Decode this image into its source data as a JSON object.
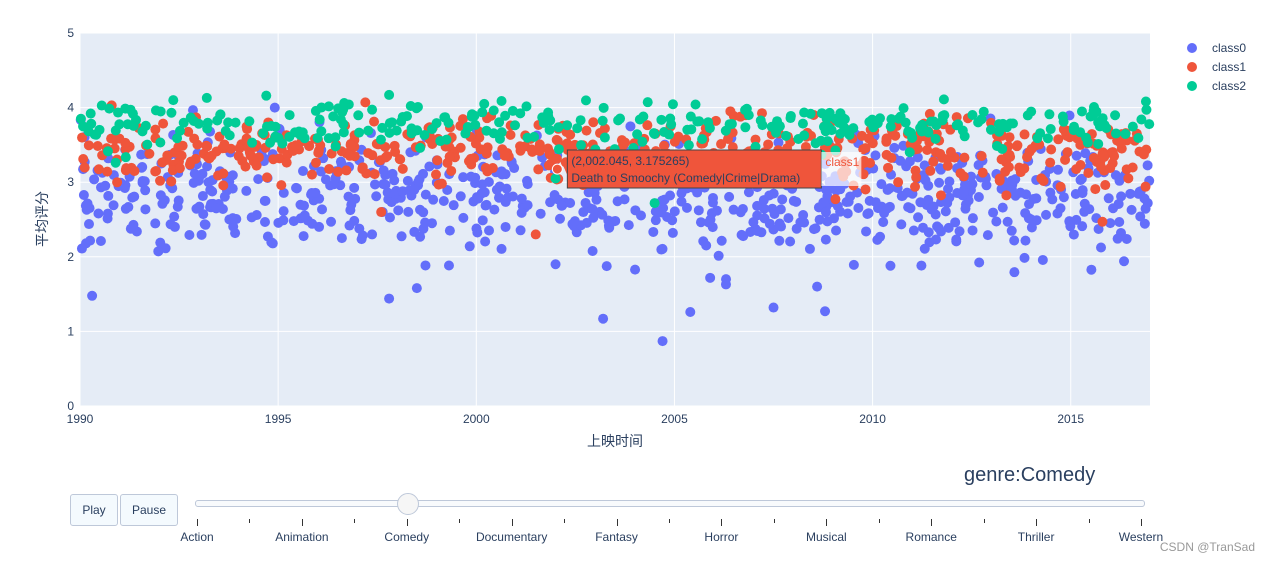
{
  "chart_data": {
    "type": "scatter",
    "xlabel": "上映时间",
    "ylabel": "平均评分",
    "xlim": [
      1990,
      2017
    ],
    "ylim": [
      0,
      5
    ],
    "xticks": [
      1990,
      1995,
      2000,
      2005,
      2010,
      2015
    ],
    "yticks": [
      0,
      1,
      2,
      3,
      4,
      5
    ],
    "grid": true,
    "legend_position": "top-right",
    "series": [
      {
        "name": "class0",
        "color": "#636efa",
        "y_center": 2.8,
        "y_spread": 0.38,
        "count": 720,
        "outliers": [
          [
            2003.2,
            1.17
          ],
          [
            2004.7,
            0.87
          ],
          [
            2005.4,
            1.26
          ],
          [
            1997.8,
            1.44
          ],
          [
            2007.5,
            1.32
          ],
          [
            2008.8,
            1.27
          ],
          [
            1998.5,
            1.58
          ],
          [
            2006.3,
            1.63
          ],
          [
            2008.6,
            1.6
          ],
          [
            2002.0,
            1.9
          ]
        ]
      },
      {
        "name": "class1",
        "color": "#ef553b",
        "y_center": 3.4,
        "y_spread": 0.22,
        "count": 520,
        "outliers": [
          [
            1990.8,
            4.03
          ],
          [
            1997.2,
            4.07
          ],
          [
            1997.6,
            2.6
          ],
          [
            2001.5,
            2.3
          ],
          [
            2015.8,
            2.47
          ]
        ]
      },
      {
        "name": "class2",
        "color": "#00cc96",
        "y_center": 3.76,
        "y_spread": 0.15,
        "count": 300,
        "outliers": [
          [
            1993.2,
            4.13
          ],
          [
            1994.7,
            4.16
          ],
          [
            1997.8,
            4.17
          ],
          [
            2011.8,
            4.11
          ],
          [
            2000.2,
            4.05
          ],
          [
            2002.0,
            3.05
          ],
          [
            2004.5,
            2.72
          ]
        ]
      }
    ],
    "hover": {
      "line1": "(2,002.045, 3.175265)",
      "line2": "Death to Smoochy (Comedy|Crime|Drama)",
      "name": "class1",
      "x": 2002.045,
      "y": 3.175265
    }
  },
  "controls": {
    "play_label": "Play",
    "pause_label": "Pause",
    "current_prefix": "genre:",
    "current_value": "Comedy",
    "slider_steps": [
      "Action",
      "Animation",
      "Comedy",
      "Documentary",
      "Fantasy",
      "Horror",
      "Musical",
      "Romance",
      "Thriller",
      "Western"
    ],
    "active_index": 2
  },
  "watermark": "CSDN @TranSad"
}
